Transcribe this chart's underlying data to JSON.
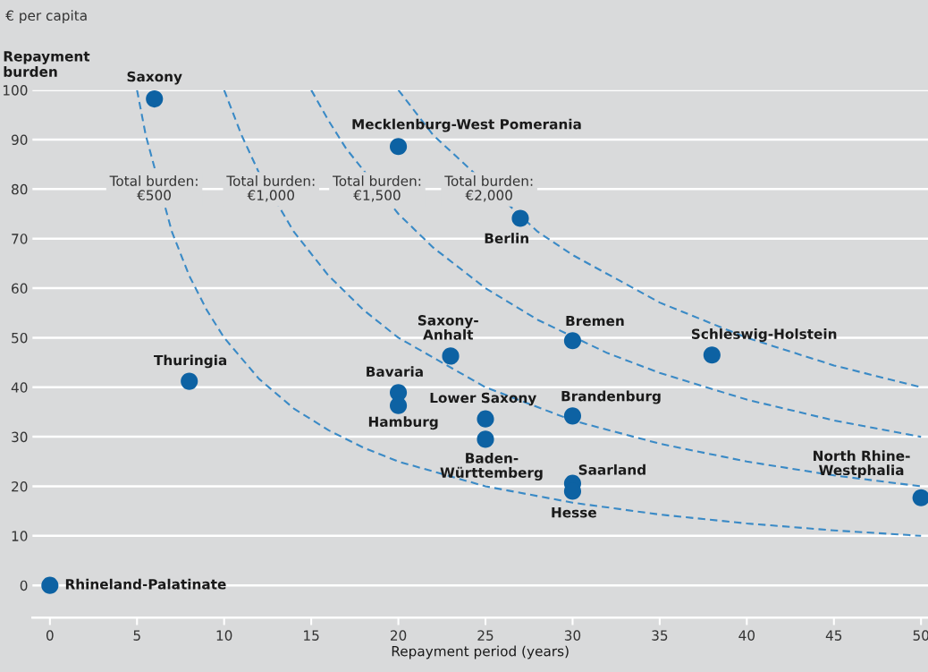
{
  "chart_data": {
    "type": "scatter",
    "xlabel": "Repayment period (years)",
    "ylabel": "Repayment\nburden",
    "xlim": [
      -1,
      50.4
    ],
    "ylim": [
      -6.5,
      100
    ],
    "xticks": [
      0,
      5,
      10,
      15,
      20,
      25,
      30,
      35,
      40,
      45,
      50
    ],
    "yticks": [
      0,
      10,
      20,
      30,
      40,
      50,
      60,
      70,
      80,
      90,
      100
    ],
    "grid": "y",
    "marker": "circle",
    "series": [
      {
        "color": "#0d62a3",
        "x": [
          6,
          20,
          27,
          30,
          38,
          23,
          8,
          20,
          20,
          25,
          30,
          25,
          30,
          30,
          50,
          0
        ],
        "values": [
          98.2,
          88.6,
          74.1,
          49.4,
          46.5,
          46.3,
          41.2,
          38.9,
          36.3,
          33.6,
          34.2,
          29.5,
          20.6,
          19.0,
          17.7,
          0
        ]
      },
      {
        "type": "line",
        "marker": "none",
        "line_style": "dashed",
        "color": "#3a8ac6",
        "x": [
          5,
          5.5,
          7,
          8,
          9,
          10,
          12,
          14,
          16,
          18,
          20,
          25,
          30,
          35,
          40,
          45,
          50
        ],
        "values": [
          100,
          90.9,
          71.4,
          62.5,
          55.6,
          50,
          41.7,
          35.7,
          31.3,
          27.8,
          25,
          20,
          16.7,
          14.3,
          12.5,
          11.1,
          10
        ]
      },
      {
        "type": "line",
        "marker": "none",
        "line_style": "dashed",
        "color": "#3a8ac6",
        "x": [
          10,
          11,
          12,
          14,
          16,
          18,
          20,
          25,
          30,
          35,
          40,
          45,
          50
        ],
        "values": [
          100,
          90.9,
          83.3,
          71.4,
          62.5,
          55.6,
          50,
          40,
          33.3,
          28.6,
          25,
          22.2,
          20
        ]
      },
      {
        "type": "line",
        "marker": "none",
        "line_style": "dashed",
        "color": "#3a8ac6",
        "x": [
          15,
          16,
          17,
          20,
          22,
          25,
          28,
          32,
          35,
          40,
          45,
          50
        ],
        "values": [
          100,
          93.8,
          88.2,
          75,
          68.2,
          60,
          53.6,
          46.9,
          42.9,
          37.5,
          33.3,
          30
        ]
      },
      {
        "type": "line",
        "marker": "none",
        "line_style": "dashed",
        "color": "#3a8ac6",
        "x": [
          20,
          22,
          28,
          30,
          35,
          40,
          45,
          50
        ],
        "values": [
          100,
          90.9,
          71.4,
          66.7,
          57.1,
          50,
          44.4,
          40
        ]
      }
    ],
    "annotations": [
      "€ per capita",
      "Total burden:\n€500",
      "Total burden:\n€1,000",
      "Total burden:\n€1,500",
      "Total burden:\n€2,000",
      {
        "text": "Saxony",
        "x": 6,
        "y": 98.2
      },
      {
        "text": "Mecklenburg-West Pomerania",
        "x": 20,
        "y": 88.6
      },
      {
        "text": "Berlin",
        "x": 27,
        "y": 74.1
      },
      {
        "text": "Bremen",
        "x": 30,
        "y": 49.4
      },
      {
        "text": "Schleswig-Holstein",
        "x": 38,
        "y": 46.5
      },
      {
        "text": "Saxony-\nAnhalt",
        "x": 23,
        "y": 46.3
      },
      {
        "text": "Thuringia",
        "x": 8,
        "y": 41.2
      },
      {
        "text": "Bavaria",
        "x": 20,
        "y": 38.9
      },
      {
        "text": "Hamburg",
        "x": 20,
        "y": 36.3
      },
      {
        "text": "Lower Saxony",
        "x": 25,
        "y": 33.6
      },
      {
        "text": "Brandenburg",
        "x": 30,
        "y": 34.2
      },
      {
        "text": "Baden-\nWürttemberg",
        "x": 25,
        "y": 29.5
      },
      {
        "text": "Saarland",
        "x": 30,
        "y": 20.6
      },
      {
        "text": "Hesse",
        "x": 30,
        "y": 19.0
      },
      {
        "text": "North Rhine-\nWestphalia",
        "x": 50,
        "y": 17.7
      },
      {
        "text": "Rhineland-Palatinate",
        "x": 0,
        "y": 0
      }
    ]
  }
}
